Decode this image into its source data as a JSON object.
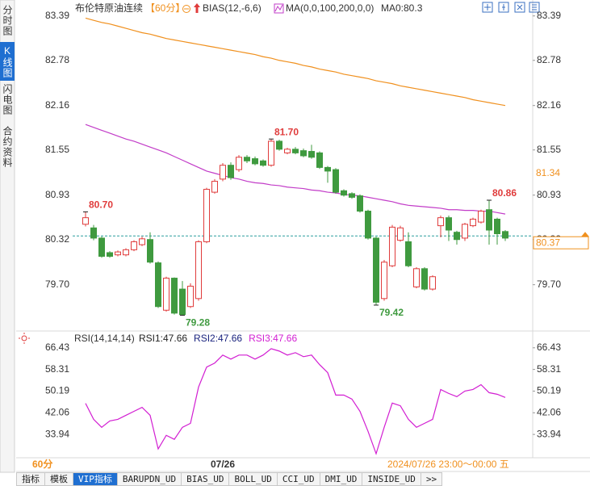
{
  "sidebar": [
    "分时图",
    "K线图",
    "闪电图",
    "合约资料"
  ],
  "chart_data": [
    {
      "type": "candlestick",
      "title": "布伦特原油连续",
      "subtitle": "【60分】",
      "indicators": [
        "BIAS(12,-6,6)",
        "MA(0,0,100,200,0,0)",
        "MA0:80.3"
      ],
      "categories": [
        null,
        null,
        null,
        null,
        null,
        null,
        null,
        null,
        null,
        null,
        null,
        null,
        null,
        null,
        null,
        null,
        null,
        "07/26",
        null,
        null,
        null,
        null,
        null,
        null,
        null,
        null,
        null,
        null,
        null,
        null,
        null,
        null,
        null,
        null,
        null,
        null,
        null,
        null,
        null,
        null,
        null,
        null,
        null,
        null,
        null,
        null,
        null,
        null,
        null,
        null,
        null,
        null,
        null
      ],
      "candles": {
        "open": [
          80.53,
          80.48,
          80.34,
          80.14,
          80.11,
          80.11,
          80.18,
          80.25,
          80.32,
          80.0,
          79.35,
          79.79,
          79.64,
          79.4,
          79.51,
          80.29,
          80.97,
          81.15,
          81.34,
          81.28,
          81.45,
          81.43,
          81.4,
          81.34,
          81.67,
          81.51,
          81.56,
          81.54,
          81.53,
          81.51,
          81.31,
          81.28,
          80.99,
          80.95,
          80.92,
          80.71,
          80.34,
          79.51,
          79.96,
          80.31,
          80.29,
          79.67,
          79.92,
          79.64,
          80.51,
          80.62,
          80.42,
          80.34,
          80.51,
          80.56,
          80.73,
          80.6,
          80.43
        ],
        "high": [
          80.7,
          80.52,
          80.36,
          80.16,
          80.17,
          80.2,
          80.31,
          80.36,
          80.42,
          80.02,
          79.81,
          79.8,
          79.75,
          79.72,
          80.31,
          81.03,
          81.15,
          81.37,
          81.38,
          81.48,
          81.48,
          81.46,
          81.42,
          81.7,
          81.69,
          81.58,
          81.59,
          81.57,
          81.62,
          81.53,
          81.33,
          81.3,
          81.01,
          80.97,
          80.94,
          80.73,
          80.36,
          80.04,
          80.52,
          80.51,
          80.42,
          79.94,
          79.94,
          79.83,
          80.65,
          80.65,
          80.44,
          80.55,
          80.62,
          80.73,
          80.86,
          80.62,
          80.45
        ],
        "low": [
          80.5,
          80.31,
          80.07,
          80.07,
          80.09,
          80.09,
          80.16,
          80.23,
          79.99,
          79.38,
          79.33,
          79.29,
          79.28,
          79.38,
          79.48,
          80.27,
          80.95,
          81.12,
          81.14,
          81.25,
          81.37,
          81.34,
          81.32,
          81.32,
          81.54,
          81.49,
          81.49,
          81.45,
          81.43,
          81.29,
          81.1,
          80.95,
          80.91,
          80.88,
          80.69,
          80.32,
          79.42,
          79.48,
          79.94,
          80.29,
          79.94,
          79.65,
          79.62,
          79.62,
          80.35,
          80.3,
          80.25,
          80.3,
          80.49,
          80.54,
          80.25,
          80.25,
          80.3
        ],
        "close": [
          80.62,
          80.34,
          80.09,
          80.09,
          80.15,
          80.18,
          80.29,
          80.33,
          80.01,
          79.4,
          79.79,
          79.31,
          79.29,
          79.68,
          80.29,
          81.01,
          81.12,
          81.34,
          81.17,
          81.45,
          81.4,
          81.36,
          81.34,
          81.67,
          81.56,
          81.56,
          81.51,
          81.47,
          81.45,
          81.31,
          81.26,
          80.97,
          80.93,
          80.9,
          80.71,
          80.34,
          79.46,
          80.01,
          80.49,
          80.48,
          79.96,
          79.92,
          79.64,
          79.81,
          80.62,
          80.45,
          80.32,
          80.53,
          80.6,
          80.71,
          80.45,
          80.4,
          80.34
        ]
      },
      "up_color": "#e03c3c",
      "down_color": "#3f9a3f",
      "lines": [
        {
          "color": "#f0901e",
          "values": [
            83.36,
            83.33,
            83.3,
            83.28,
            83.25,
            83.22,
            83.19,
            83.16,
            83.14,
            83.11,
            83.08,
            83.06,
            83.04,
            83.02,
            83.0,
            82.98,
            82.96,
            82.94,
            82.92,
            82.9,
            82.88,
            82.86,
            82.83,
            82.81,
            82.78,
            82.76,
            82.74,
            82.71,
            82.69,
            82.66,
            82.64,
            82.62,
            82.59,
            82.57,
            82.55,
            82.53,
            82.5,
            82.48,
            82.46,
            82.43,
            82.41,
            82.39,
            82.37,
            82.35,
            82.33,
            82.31,
            82.29,
            82.27,
            82.24,
            82.22,
            82.2,
            82.18,
            82.16
          ]
        },
        {
          "color": "#c23cc8",
          "values": [
            81.9,
            81.86,
            81.82,
            81.78,
            81.74,
            81.7,
            81.67,
            81.63,
            81.59,
            81.55,
            81.51,
            81.46,
            81.41,
            81.36,
            81.31,
            81.26,
            81.23,
            81.2,
            81.17,
            81.15,
            81.12,
            81.1,
            81.09,
            81.07,
            81.06,
            81.04,
            81.03,
            81.02,
            81.0,
            80.99,
            80.97,
            80.96,
            80.94,
            80.93,
            80.92,
            80.9,
            80.88,
            80.86,
            80.84,
            80.81,
            80.79,
            80.78,
            80.77,
            80.76,
            80.75,
            80.73,
            80.73,
            80.72,
            80.72,
            80.71,
            80.71,
            80.69,
            80.67
          ]
        }
      ],
      "extremes": [
        {
          "value": 80.7,
          "label": "80.70"
        },
        {
          "value": 81.7,
          "label": "81.70"
        },
        {
          "value": 79.28,
          "label": "79.28"
        },
        {
          "value": 79.42,
          "label": "79.42"
        },
        {
          "value": 80.86,
          "label": "80.86"
        }
      ],
      "ylim": [
        79.12,
        83.52
      ],
      "yticks": [
        83.39,
        82.78,
        82.16,
        81.55,
        80.93,
        80.32,
        {
          "value": 79.7,
          "label": "79.70"
        }
      ],
      "ma_value": 81.34,
      "last_price": 80.37
    },
    {
      "type": "line",
      "title": "RSI(14,14,14)",
      "legend": [
        {
          "name": "RSI1:47.66",
          "color": "#222222"
        },
        {
          "name": "RSI2:47.66",
          "color": "#1a237e"
        },
        {
          "name": "RSI3:47.66",
          "color": "#d21ed2"
        }
      ],
      "color": "#d21ed2",
      "values": [
        45.6,
        39.6,
        36.6,
        39.0,
        39.6,
        41.1,
        42.6,
        44.1,
        41.1,
        28.5,
        33.6,
        32.1,
        36.6,
        38.1,
        51.7,
        59.2,
        60.7,
        63.7,
        62.2,
        63.7,
        63.7,
        62.2,
        63.7,
        66.1,
        65.2,
        63.7,
        64.6,
        63.1,
        63.7,
        60.1,
        57.1,
        48.7,
        48.7,
        47.2,
        42.6,
        35.1,
        26.7,
        36.6,
        45.7,
        44.7,
        39.6,
        36.6,
        38.1,
        39.6,
        50.8,
        49.3,
        48.1,
        50.2,
        50.8,
        52.6,
        49.6,
        49.0,
        47.8
      ],
      "ylim": [
        25.8,
        69.7
      ],
      "yticks": [
        66.43,
        58.31,
        50.19,
        42.06,
        33.94
      ]
    }
  ],
  "status_bar": {
    "period": "60分",
    "time": "2024/07/26 23:00～00:00 五"
  },
  "tabs": [
    "指标",
    "模板",
    "VIP指标",
    "BARUPDN_UD",
    "BIAS_UD",
    "BOLL_UD",
    "CCI_UD",
    "DMI_UD",
    "INSIDE_UD",
    ">>"
  ]
}
